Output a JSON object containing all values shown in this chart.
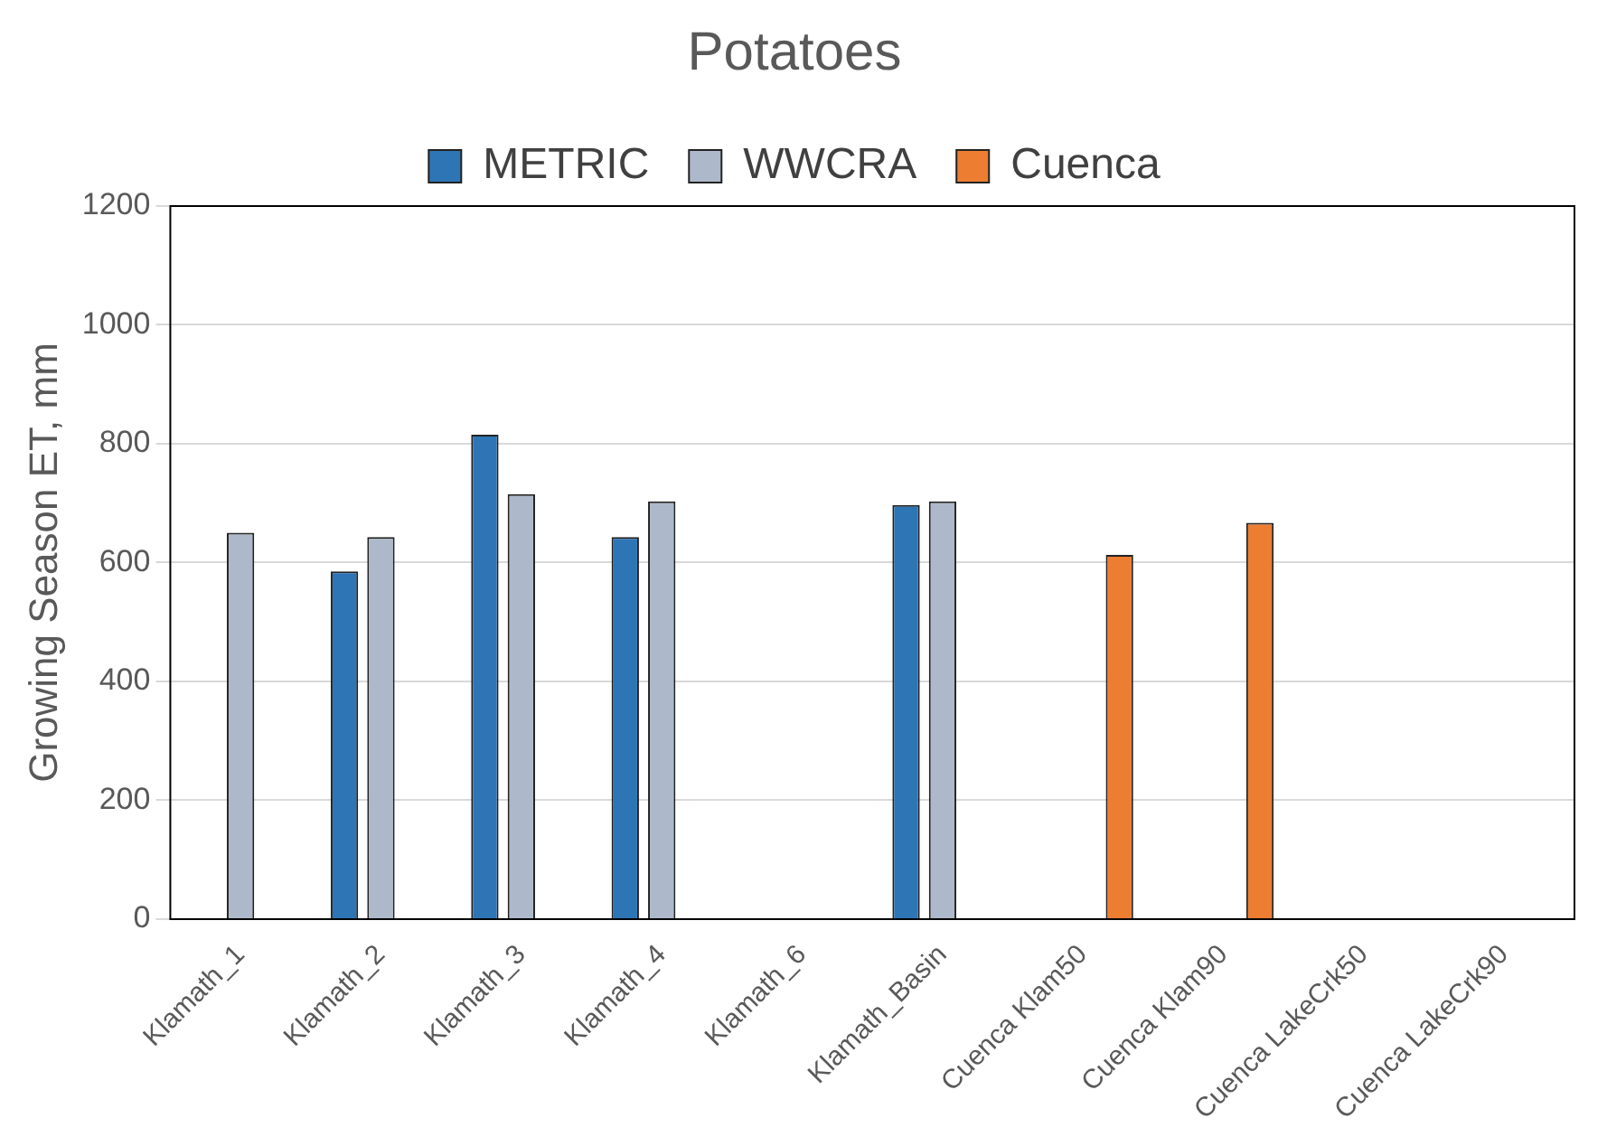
{
  "chart_data": {
    "type": "bar",
    "title": "Potatoes",
    "ylabel": "Growing Season ET, mm",
    "categories": [
      "Klamath_1",
      "Klamath_2",
      "Klamath_3",
      "Klamath_4",
      "Klamath_6",
      "Klamath_Basin",
      "Cuenca Klam50",
      "Cuenca Klam90",
      "Cuenca LakeCrk50",
      "Cuenca LakeCrk90"
    ],
    "series": [
      {
        "name": "METRIC",
        "color": "#2e75b6",
        "values": [
          null,
          585,
          815,
          643,
          null,
          697,
          null,
          null,
          null,
          null
        ]
      },
      {
        "name": "WWCRA",
        "color": "#adb9ca",
        "values": [
          650,
          643,
          715,
          703,
          null,
          703,
          null,
          null,
          null,
          null
        ]
      },
      {
        "name": "Cuenca",
        "color": "#ed7d31",
        "values": [
          null,
          null,
          null,
          null,
          null,
          null,
          613,
          667,
          null,
          null
        ]
      }
    ],
    "ylim": [
      0,
      1200
    ],
    "yticks": [
      0,
      200,
      400,
      600,
      800,
      1000,
      1200
    ],
    "grid": "y",
    "legend": "top"
  }
}
